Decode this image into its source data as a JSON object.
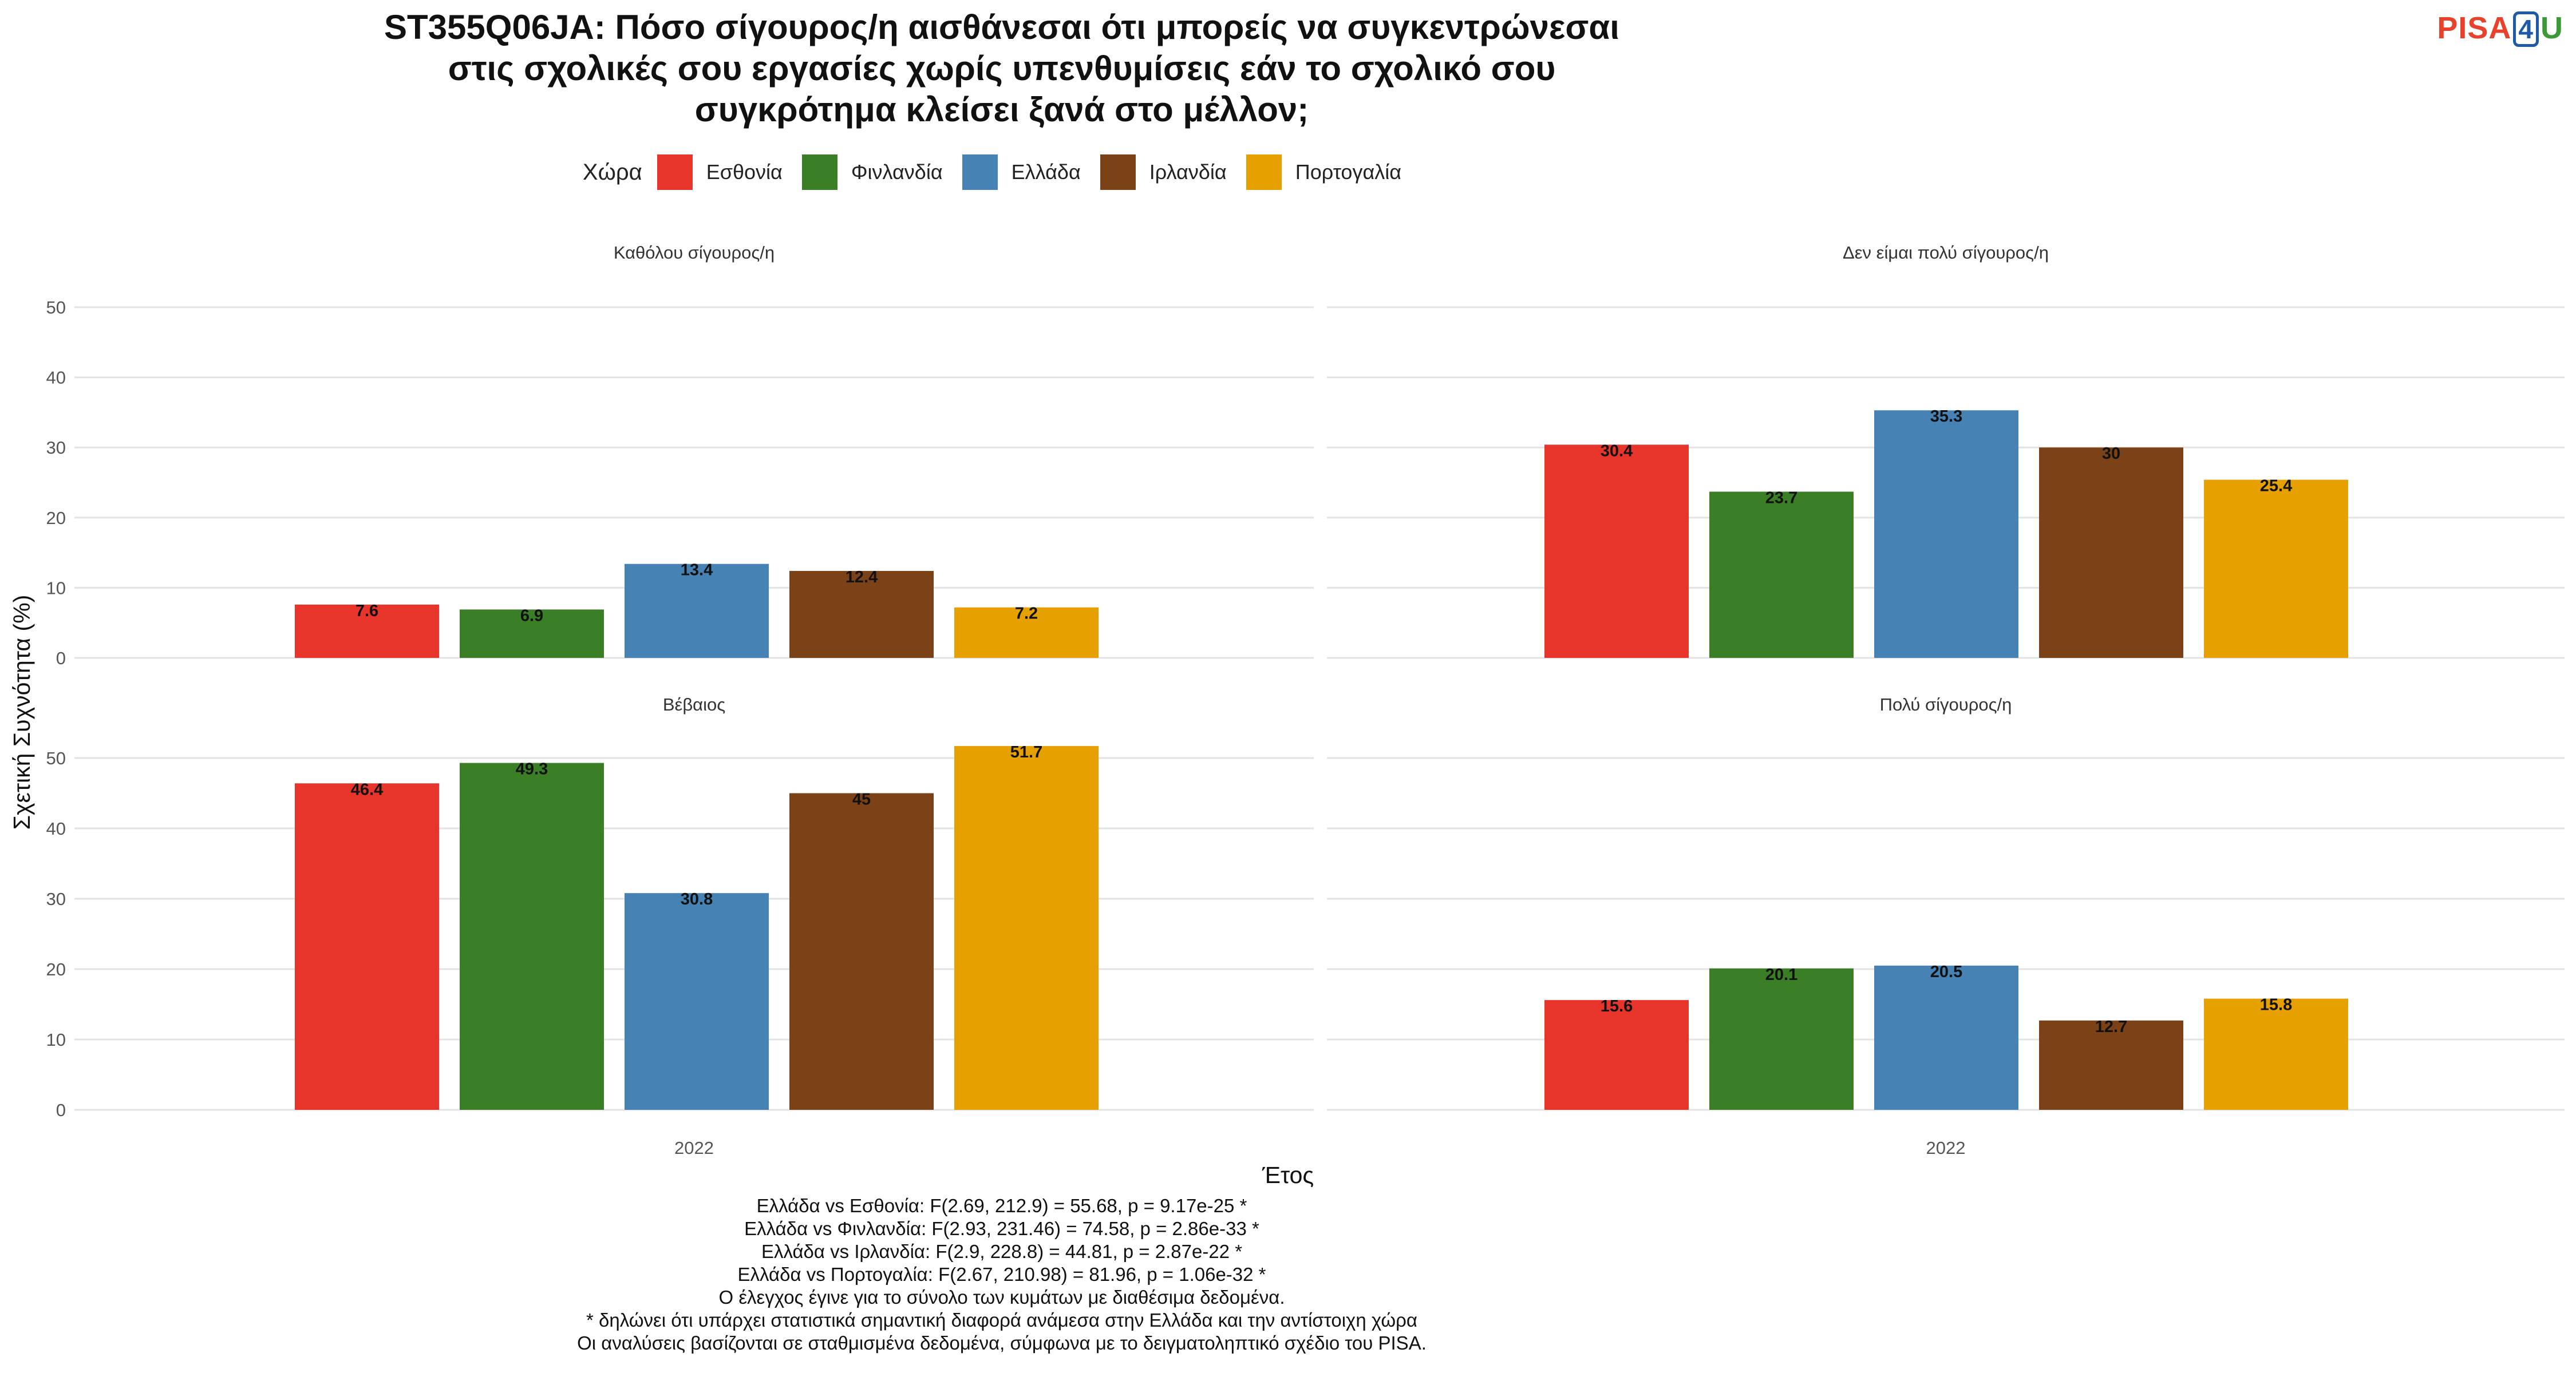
{
  "title_lines": [
    "ST355Q06JA: Πόσο σίγουρος/η αισθάνεσαι ότι μπορείς να συγκεντρώνεσαι",
    "στις σχολικές σου εργασίες χωρίς υπενθυμίσεις εάν το σχολικό σου",
    "συγκρότημα κλείσει ξανά στο μέλλον;"
  ],
  "logo": {
    "part1": "PISA",
    "part2": "4",
    "part3": "U"
  },
  "legend": {
    "title": "Χώρα",
    "items": [
      {
        "label": "Εσθονία",
        "color": "#e8352b"
      },
      {
        "label": "Φινλανδία",
        "color": "#3a7f26"
      },
      {
        "label": "Ελλάδα",
        "color": "#4682b4"
      },
      {
        "label": "Ιρλανδία",
        "color": "#7b4217"
      },
      {
        "label": "Πορτογαλία",
        "color": "#e6a000"
      }
    ]
  },
  "chart_data": {
    "type": "bar",
    "ylabel": "Σχετική Συχνότητα (%)",
    "xlabel": "Έτος",
    "categories": [
      "2022"
    ],
    "series_names": [
      "Εσθονία",
      "Φινλανδία",
      "Ελλάδα",
      "Ιρλανδία",
      "Πορτογαλία"
    ],
    "colors": [
      "#e8352b",
      "#3a7f26",
      "#4682b4",
      "#7b4217",
      "#e6a000"
    ],
    "ylim": [
      0,
      50
    ],
    "yticks": [
      0,
      10,
      20,
      30,
      40,
      50
    ],
    "grid": true,
    "legend_position": "top",
    "panels": [
      {
        "title": "Καθόλου σίγουρος/η",
        "values": [
          7.6,
          6.9,
          13.4,
          12.4,
          7.2
        ],
        "labels": [
          "7.6",
          "6.9",
          "13.4",
          "12.4",
          "7.2"
        ]
      },
      {
        "title": "Δεν είμαι πολύ σίγουρος/η",
        "values": [
          30.4,
          23.7,
          35.3,
          30,
          25.4
        ],
        "labels": [
          "30.4",
          "23.7",
          "35.3",
          "30",
          "25.4"
        ]
      },
      {
        "title": "Βέβαιος",
        "values": [
          46.4,
          49.3,
          30.8,
          45,
          51.7
        ],
        "labels": [
          "46.4",
          "49.3",
          "30.8",
          "45",
          "51.7"
        ]
      },
      {
        "title": "Πολύ σίγουρος/η",
        "values": [
          15.6,
          20.1,
          20.5,
          12.7,
          15.8
        ],
        "labels": [
          "15.6",
          "20.1",
          "20.5",
          "12.7",
          "15.8"
        ]
      }
    ]
  },
  "footer_lines": [
    "Ελλάδα vs Εσθονία: F(2.69, 212.9) = 55.68, p = 9.17e-25 *",
    "Ελλάδα vs Φινλανδία: F(2.93, 231.46) = 74.58, p = 2.86e-33 *",
    "Ελλάδα vs Ιρλανδία: F(2.9, 228.8) = 44.81, p = 2.87e-22 *",
    "Ελλάδα vs Πορτογαλία: F(2.67, 210.98) = 81.96, p = 1.06e-32 *",
    "Ο έλεγχος έγινε για το σύνολο των κυμάτων με διαθέσιμα δεδομένα.",
    "* δηλώνει ότι υπάρχει στατιστικά σημαντική διαφορά ανάμεσα στην Ελλάδα και την αντίστοιχη χώρα",
    "Οι αναλύσεις βασίζονται σε σταθμισμένα δεδομένα, σύμφωνα με το δειγματοληπτικό σχέδιο του PISA."
  ]
}
